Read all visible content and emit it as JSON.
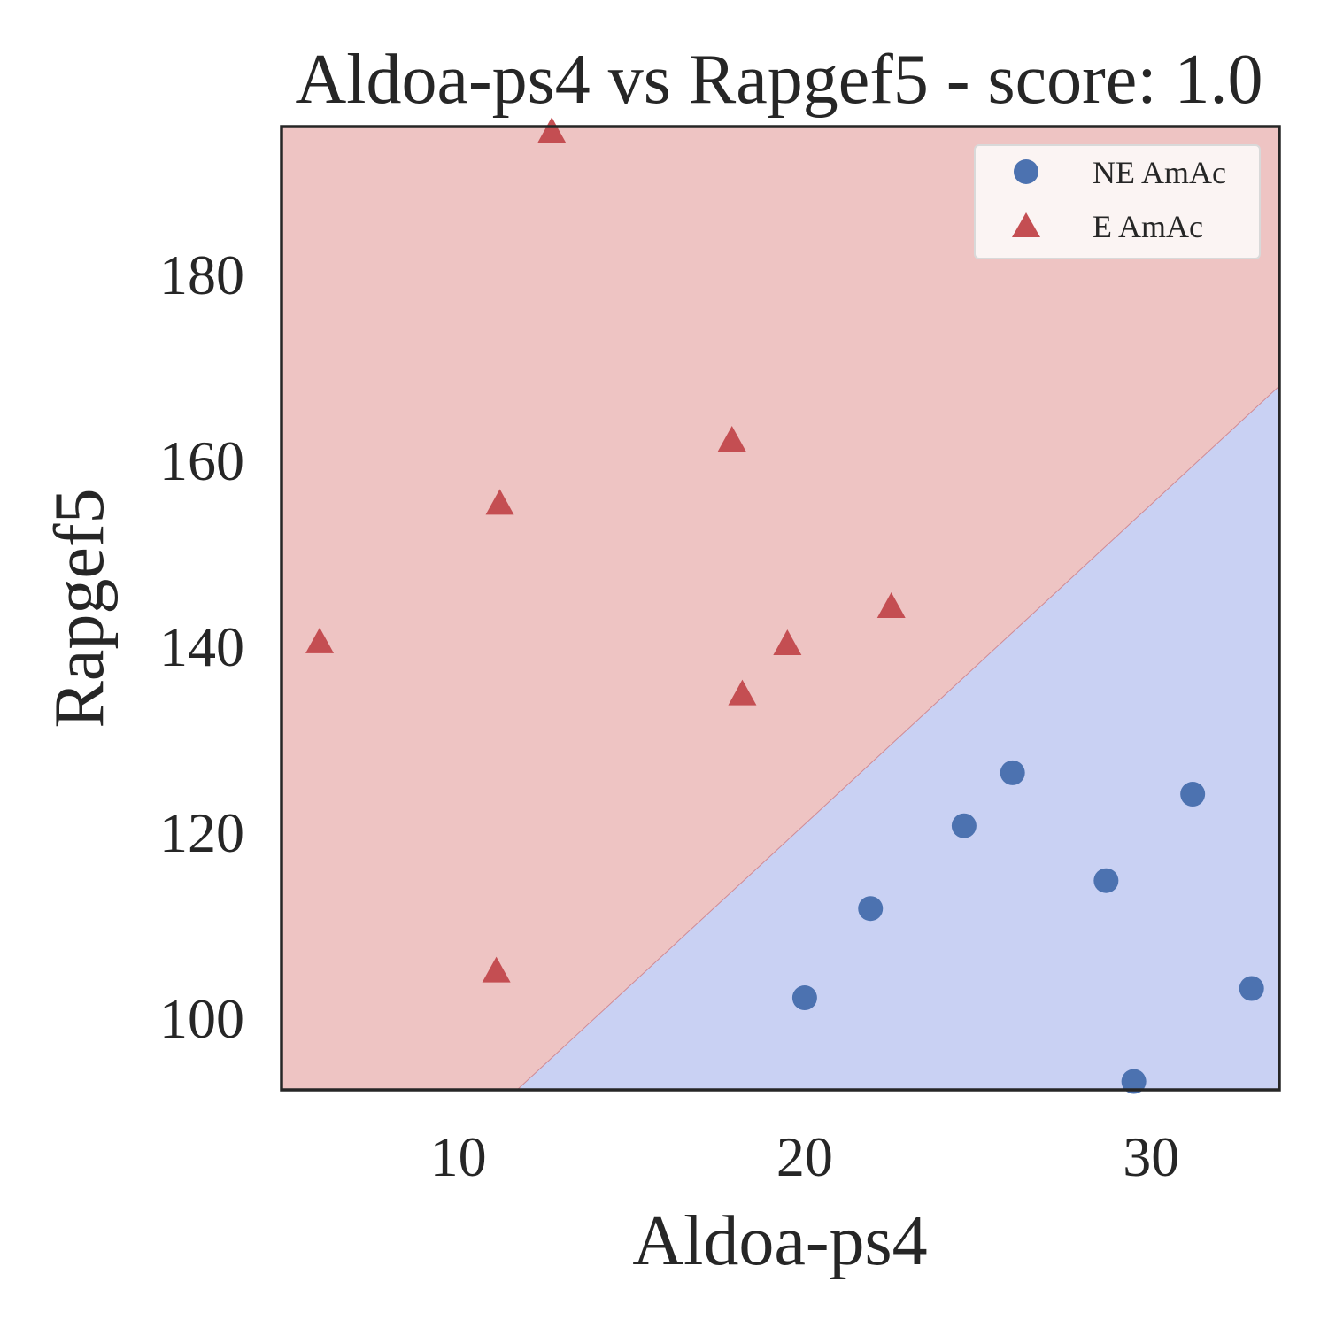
{
  "chart_data": {
    "type": "scatter",
    "title": "Aldoa-ps4 vs Rapgef5 - score: 1.0",
    "xlabel": "Aldoa-ps4",
    "ylabel": "Rapgef5",
    "xlim": [
      4.9,
      33.7
    ],
    "ylim": [
      92.3,
      195.9
    ],
    "xticks": [
      10,
      20,
      30
    ],
    "yticks": [
      100,
      120,
      140,
      160,
      180
    ],
    "grid": false,
    "legend_position": "top-right",
    "decision_boundary": {
      "line": [
        [
          11.7,
          92.3
        ],
        [
          33.7,
          168.0
        ]
      ],
      "region_colors": {
        "E AmAc": "#eec4c3",
        "NE AmAc": "#c9d1f3"
      },
      "boundary_color": "#d08a94"
    },
    "series": [
      {
        "name": "NE AmAc",
        "marker": "circle",
        "color": "#4c72b0",
        "points": [
          [
            20.0,
            102.2
          ],
          [
            21.9,
            111.8
          ],
          [
            24.6,
            120.7
          ],
          [
            26.0,
            126.4
          ],
          [
            28.7,
            114.8
          ],
          [
            29.5,
            93.2
          ],
          [
            31.2,
            124.1
          ],
          [
            32.9,
            103.2
          ]
        ]
      },
      {
        "name": "E AmAc",
        "marker": "triangle",
        "color": "#c44e52",
        "points": [
          [
            6.0,
            140.4
          ],
          [
            11.1,
            105.0
          ],
          [
            11.2,
            155.3
          ],
          [
            12.7,
            195.3
          ],
          [
            17.9,
            162.1
          ],
          [
            18.2,
            134.8
          ],
          [
            19.5,
            140.2
          ],
          [
            22.5,
            144.2
          ]
        ]
      }
    ]
  }
}
